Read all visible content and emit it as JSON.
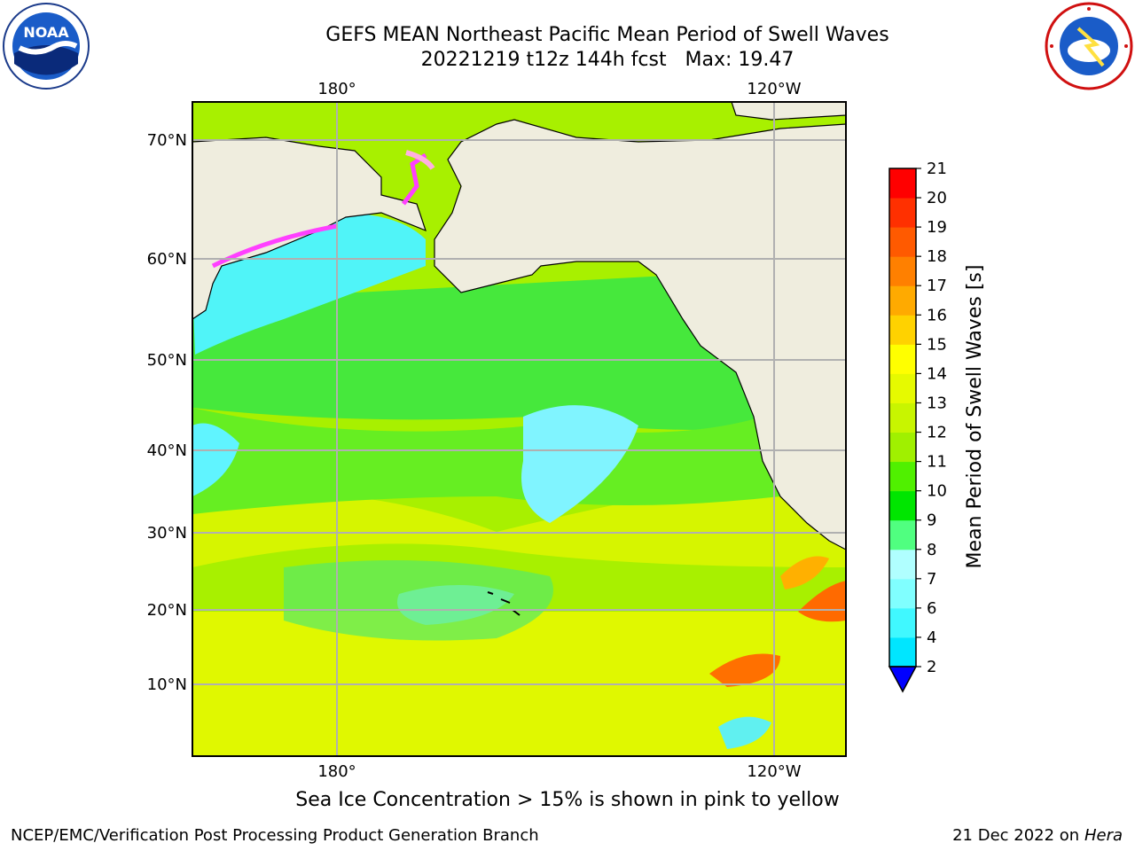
{
  "title": {
    "line1": "GEFS MEAN Northeast Pacific Mean Period of Swell Waves",
    "line2": "20221219 t12z 144h fcst   Max: 19.47"
  },
  "map": {
    "lat_labels": [
      "70°N",
      "60°N",
      "50°N",
      "40°N",
      "30°N",
      "20°N",
      "10°N"
    ],
    "lon_labels": [
      "180°",
      "120°W"
    ],
    "colors": {
      "land": "#efedde",
      "ocean_main": "#9cf000",
      "ocean_north": "#40e840",
      "cyan": "#40f0ff",
      "ice_pink": "#ff40ff",
      "grid": "#b0b0b0"
    }
  },
  "colorbar": {
    "label": "Mean Period of Swell Waves [s]",
    "ticks": [
      "2",
      "4",
      "6",
      "7",
      "8",
      "9",
      "10",
      "11",
      "12",
      "13",
      "14",
      "15",
      "16",
      "17",
      "18",
      "19",
      "20",
      "21"
    ],
    "colors": [
      "#0064ff",
      "#00e6ff",
      "#40f8ff",
      "#80ffff",
      "#b0ffff",
      "#50ff80",
      "#00e600",
      "#50f000",
      "#a0f000",
      "#c8f500",
      "#e6fa00",
      "#ffff00",
      "#ffd200",
      "#ffaa00",
      "#ff8000",
      "#ff5a00",
      "#ff3000",
      "#ff0000"
    ],
    "extend_color": "#0000ff"
  },
  "footer": {
    "note": "Sea Ice Concentration > 15% is shown in pink to yellow",
    "left": "NCEP/EMC/Verification Post Processing Product Generation Branch",
    "right_date": "21 Dec 2022 on",
    "right_host": "Hera"
  }
}
